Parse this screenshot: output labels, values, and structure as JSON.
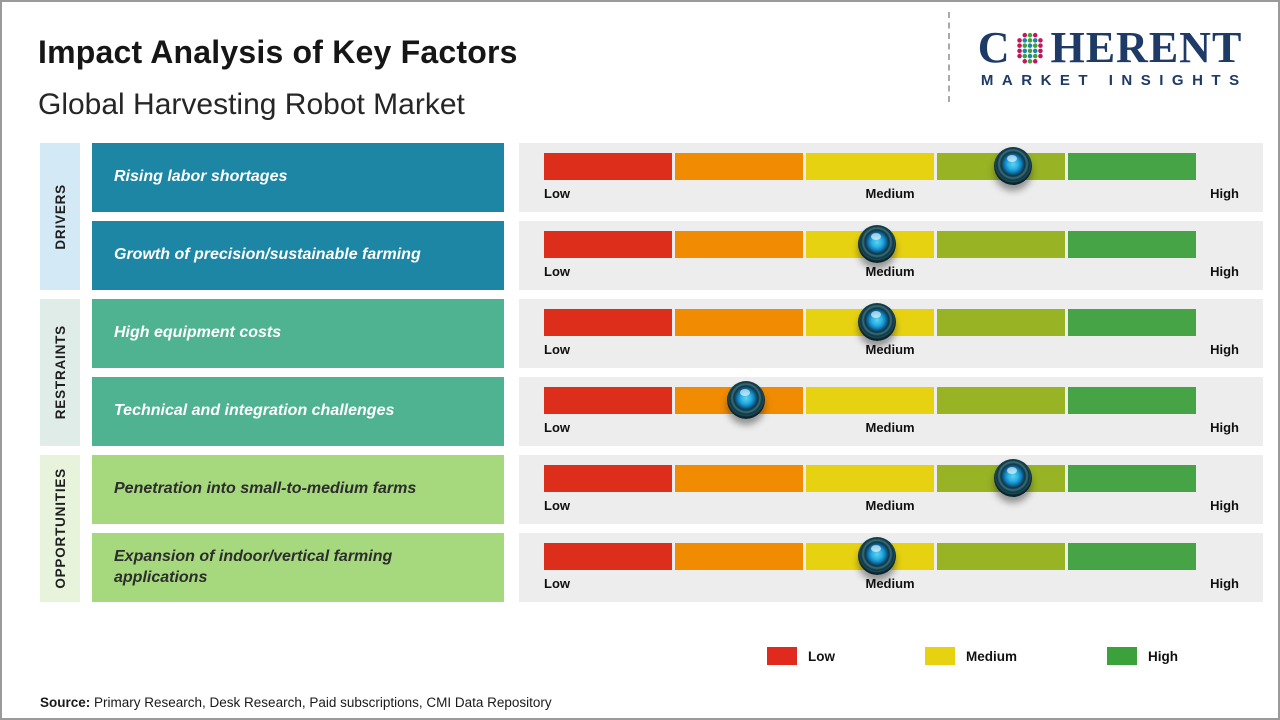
{
  "header": {
    "title": "Impact Analysis of Key Factors",
    "subtitle": "Global Harvesting Robot Market",
    "logo": {
      "brand_prefix": "C",
      "brand_suffix": "HERENT",
      "tagline": "MARKET INSIGHTS",
      "brand_color": "#1e3a66"
    }
  },
  "scale_labels": {
    "low": "Low",
    "medium": "Medium",
    "high": "High"
  },
  "scale_segments": [
    "#dc2e1b",
    "#f08b02",
    "#e7d211",
    "#98b324",
    "#46a447"
  ],
  "groups": [
    {
      "category": "DRIVERS",
      "strip_color": "#d3eaf6",
      "box_color": "#1d86a5",
      "text_color": "#ffffff",
      "rows": [
        {
          "label": "Rising labor shortages",
          "impact_percent": 72
        },
        {
          "label": "Growth of precision/sustainable farming",
          "impact_percent": 51
        }
      ]
    },
    {
      "category": "RESTRAINTS",
      "strip_color": "#dfece7",
      "box_color": "#4fb392",
      "text_color": "#ffffff",
      "rows": [
        {
          "label": "High equipment costs",
          "impact_percent": 51
        },
        {
          "label": "Technical and integration challenges",
          "impact_percent": 31
        }
      ]
    },
    {
      "category": "OPPORTUNITIES",
      "strip_color": "#e7f3db",
      "box_color": "#a6d87d",
      "text_color": "#2d2d2d",
      "rows": [
        {
          "label": "Penetration into small-to-medium farms",
          "impact_percent": 72
        },
        {
          "label": "Expansion of indoor/vertical farming applications",
          "impact_percent": 51
        }
      ]
    }
  ],
  "legend": {
    "items": [
      {
        "label": "Low",
        "color": "#e02a1e"
      },
      {
        "label": "Medium",
        "color": "#e7d211"
      },
      {
        "label": "High",
        "color": "#3ba13a"
      }
    ]
  },
  "source": {
    "prefix": "Source:",
    "text": " Primary Research, Desk Research, Paid subscriptions, CMI Data Repository"
  },
  "chart_data": {
    "type": "table",
    "title": "Impact Analysis of Key Factors",
    "subtitle": "Global Harvesting Robot Market",
    "scale": [
      "Low",
      "Medium",
      "High"
    ],
    "scale_axis_range_percent": [
      0,
      100
    ],
    "legend_position": "bottom-right",
    "rows": [
      {
        "category": "Drivers",
        "factor": "Rising labor shortages",
        "impact": "Medium-High",
        "scale_position_percent": 72
      },
      {
        "category": "Drivers",
        "factor": "Growth of precision/sustainable farming",
        "impact": "Medium",
        "scale_position_percent": 51
      },
      {
        "category": "Restraints",
        "factor": "High equipment costs",
        "impact": "Medium",
        "scale_position_percent": 51
      },
      {
        "category": "Restraints",
        "factor": "Technical and integration challenges",
        "impact": "Low-Medium",
        "scale_position_percent": 31
      },
      {
        "category": "Opportunities",
        "factor": "Penetration into small-to-medium farms",
        "impact": "Medium-High",
        "scale_position_percent": 72
      },
      {
        "category": "Opportunities",
        "factor": "Expansion of indoor/vertical farming applications",
        "impact": "Medium",
        "scale_position_percent": 51
      }
    ]
  }
}
